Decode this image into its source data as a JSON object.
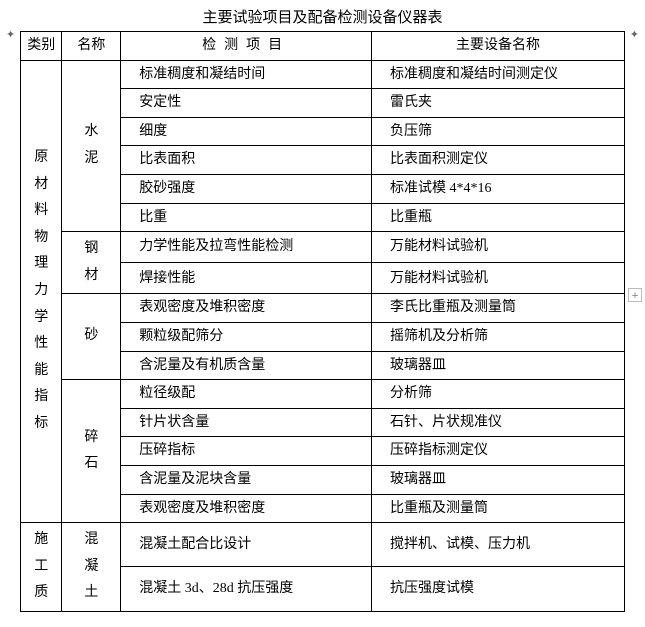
{
  "title": "主要试验项目及配备检测设备仪器表",
  "headers": {
    "category": "类别",
    "name": "名称",
    "item": "检测项目",
    "equipment": "主要设备名称"
  },
  "groups": [
    {
      "category": "原材料物理力学性能指标",
      "subgroups": [
        {
          "name": "水泥",
          "rows": [
            {
              "item": "标准稠度和凝结时间",
              "equip": "标准稠度和凝结时间测定仪"
            },
            {
              "item": "安定性",
              "equip": "雷氏夹"
            },
            {
              "item": "细度",
              "equip": "负压筛"
            },
            {
              "item": "比表面积",
              "equip": "比表面积测定仪"
            },
            {
              "item": "胶砂强度",
              "equip": "标准试模 4*4*16"
            },
            {
              "item": "比重",
              "equip": "比重瓶"
            }
          ]
        },
        {
          "name": "钢材",
          "rows": [
            {
              "item": "力学性能及拉弯性能检测",
              "equip": "万能材料试验机"
            },
            {
              "item": "焊接性能",
              "equip": "万能材料试验机"
            }
          ]
        },
        {
          "name": "砂",
          "rows": [
            {
              "item": "表观密度及堆积密度",
              "equip": "李氏比重瓶及测量筒"
            },
            {
              "item": "颗粒级配筛分",
              "equip": "摇筛机及分析筛"
            },
            {
              "item": "含泥量及有机质含量",
              "equip": "玻璃器皿"
            }
          ]
        },
        {
          "name": "碎石",
          "rows": [
            {
              "item": "粒径级配",
              "equip": "分析筛"
            },
            {
              "item": "针片状含量",
              "equip": "石针、片状规准仪"
            },
            {
              "item": "压碎指标",
              "equip": "压碎指标测定仪"
            },
            {
              "item": "含泥量及泥块含量",
              "equip": "玻璃器皿"
            },
            {
              "item": "表观密度及堆积密度",
              "equip": "比重瓶及测量筒"
            }
          ]
        }
      ]
    },
    {
      "category": "施工质",
      "subgroups": [
        {
          "name": "混凝土",
          "rows": [
            {
              "item": "混凝土配合比设计",
              "equip": "搅拌机、试模、压力机"
            },
            {
              "item": "混凝土 3d、28d 抗压强度",
              "equip": "抗压强度试模"
            }
          ]
        }
      ]
    }
  ],
  "marks": {
    "tl": "✦",
    "tr": "✦",
    "right": "+"
  }
}
